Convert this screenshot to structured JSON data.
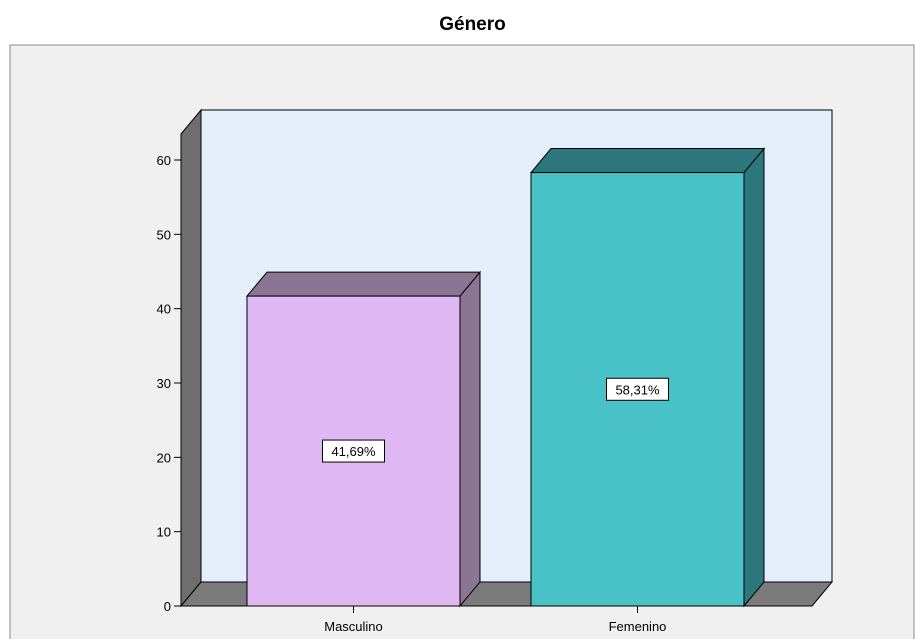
{
  "chart_data": {
    "type": "bar",
    "title": "Género",
    "categories": [
      "Masculino",
      "Femenino"
    ],
    "values": [
      41.69,
      58.31
    ],
    "data_labels": [
      "41,69%",
      "58,31%"
    ],
    "xlabel": "",
    "ylabel": "",
    "ylim": [
      0,
      60
    ],
    "yticks": [
      "0",
      "10",
      "20",
      "30",
      "40",
      "50",
      "60"
    ],
    "grid": false,
    "legend": "none",
    "bar_colors": [
      {
        "front": "#dfb8f3",
        "top": "#8a7692",
        "side": "#8a7692"
      },
      {
        "front": "#48c1c7",
        "top": "#2b777b",
        "side": "#2b777b"
      }
    ],
    "plot_background": "#e3eefa",
    "outer_background": "#f0f0f0",
    "wall_color": "#6e6e6e",
    "floor_color": "#7b7b7b"
  }
}
